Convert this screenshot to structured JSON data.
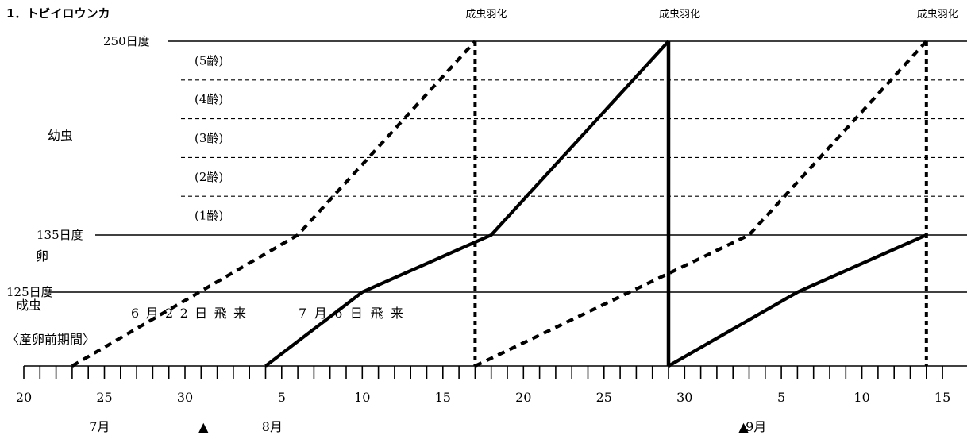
{
  "chart_data": {
    "type": "line",
    "title": "1．トビイロウンカ",
    "y_levels": [
      {
        "label": "250日度",
        "value": 250
      },
      {
        "label": "135日度",
        "value": 135
      },
      {
        "label": "125日度",
        "value": 125
      }
    ],
    "instars": [
      "(5齢)",
      "(4齢)",
      "(3齢)",
      "(2齢)",
      "(1齢)"
    ],
    "stages": {
      "nymph": "幼虫",
      "egg": "卵",
      "adult": "成虫",
      "preoviposition": "〈産卵前期間〉"
    },
    "emergence_label": "成虫羽化",
    "emergence_dates": [
      "8/17",
      "8/29",
      "9/14"
    ],
    "x_tick_labels": [
      "20",
      "25",
      "30",
      "5",
      "10",
      "15",
      "20",
      "25",
      "30",
      "5",
      "10",
      "15"
    ],
    "month_labels": [
      "7月",
      "8月",
      "9月"
    ],
    "arrival_marker": "▲",
    "series": [
      {
        "name": "6月22日飛来",
        "style": "dashed",
        "points": [
          [
            "7/23",
            0
          ],
          [
            "8/6",
            135
          ],
          [
            "8/17",
            250
          ]
        ]
      },
      {
        "name": "7月6日飛来",
        "style": "solid",
        "points": [
          [
            "8/4",
            0
          ],
          [
            "8/10",
            125
          ],
          [
            "8/18",
            135
          ],
          [
            "8/29",
            250
          ]
        ]
      },
      {
        "name": "",
        "style": "dashed",
        "points": [
          [
            "8/17",
            0
          ],
          [
            "9/3",
            135
          ],
          [
            "9/14",
            250
          ]
        ]
      },
      {
        "name": "",
        "style": "solid",
        "points": [
          [
            "8/29",
            0
          ],
          [
            "9/6",
            125
          ],
          [
            "9/14",
            135
          ]
        ]
      }
    ]
  }
}
